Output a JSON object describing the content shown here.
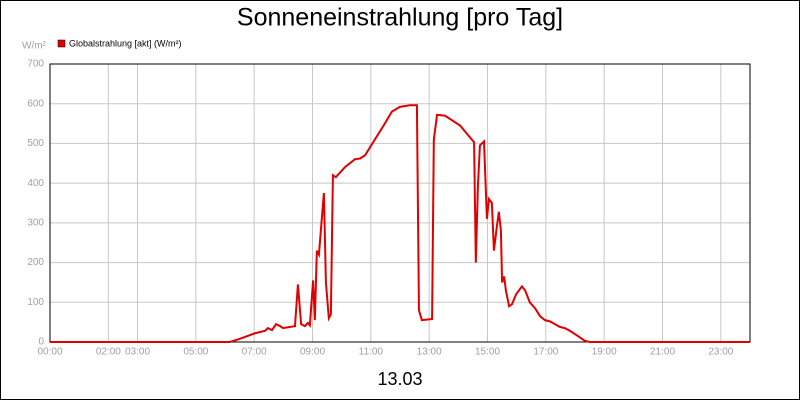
{
  "chart_data": {
    "type": "line",
    "title": "Sonneneinstrahlung [pro Tag]",
    "ylabel": "W/m²",
    "xlabel": "13.03",
    "x": [
      0,
      6.17,
      6.51,
      7.03,
      7.37,
      7.47,
      7.61,
      7.75,
      7.89,
      7.99,
      8.4,
      8.5,
      8.61,
      8.74,
      8.84,
      8.91,
      9.02,
      9.08,
      9.15,
      9.22,
      9.39,
      9.46,
      9.56,
      9.63,
      9.7,
      9.8,
      10.11,
      10.45,
      10.63,
      10.8,
      11.14,
      11.48,
      11.72,
      12.0,
      12.34,
      12.58,
      12.65,
      12.75,
      13.1,
      13.16,
      13.27,
      13.54,
      14.06,
      14.54,
      14.6,
      14.67,
      14.74,
      14.88,
      14.98,
      15.05,
      15.15,
      15.22,
      15.32,
      15.39,
      15.46,
      15.5,
      15.57,
      15.63,
      15.74,
      15.84,
      15.98,
      16.18,
      16.29,
      16.45,
      16.63,
      16.8,
      16.97,
      17.14,
      17.31,
      17.48,
      17.65,
      17.83,
      18.1,
      18.34,
      18.51,
      24
    ],
    "series": [
      {
        "name": "Globalstrahlung [akt] (W/m²)",
        "color": "#e00000",
        "values": [
          0,
          0,
          8,
          22,
          28,
          35,
          30,
          45,
          40,
          35,
          40,
          145,
          45,
          40,
          48,
          42,
          155,
          55,
          230,
          220,
          375,
          150,
          60,
          70,
          420,
          415,
          440,
          460,
          462,
          470,
          510,
          550,
          580,
          592,
          596,
          596,
          80,
          55,
          58,
          510,
          572,
          570,
          545,
          503,
          200,
          390,
          495,
          505,
          310,
          360,
          350,
          230,
          290,
          328,
          280,
          150,
          165,
          130,
          90,
          95,
          120,
          140,
          130,
          100,
          85,
          65,
          55,
          52,
          45,
          38,
          35,
          28,
          15,
          3,
          0,
          0
        ]
      }
    ],
    "xlim": [
      0,
      24
    ],
    "ylim": [
      0,
      700
    ],
    "xticks": [
      {
        "value": 0,
        "label": "00:00"
      },
      {
        "value": 2,
        "label": "02:00"
      },
      {
        "value": 3,
        "label": "03:00"
      },
      {
        "value": 5,
        "label": "05:00"
      },
      {
        "value": 7,
        "label": "07:00"
      },
      {
        "value": 9,
        "label": "09:00"
      },
      {
        "value": 11,
        "label": "11:00"
      },
      {
        "value": 13,
        "label": "13:00"
      },
      {
        "value": 15,
        "label": "15:00"
      },
      {
        "value": 17,
        "label": "17:00"
      },
      {
        "value": 19,
        "label": "19:00"
      },
      {
        "value": 21,
        "label": "21:00"
      },
      {
        "value": 23,
        "label": "23:00"
      }
    ],
    "yticks": [
      0,
      100,
      200,
      300,
      400,
      500,
      600,
      700
    ],
    "grid": true
  }
}
